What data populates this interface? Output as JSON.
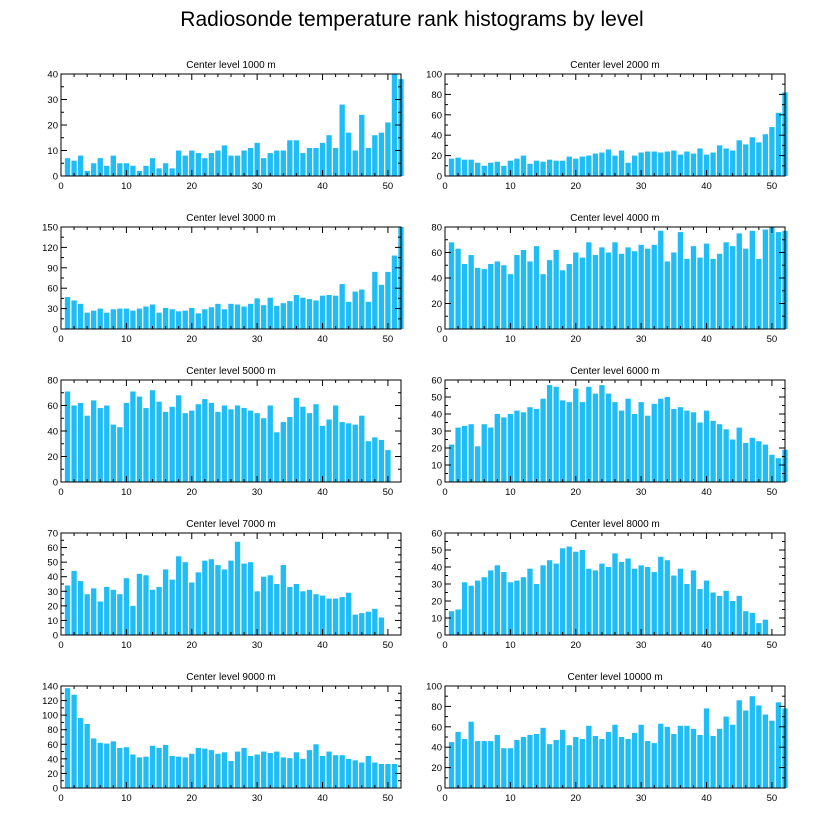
{
  "page_title": "Radiosonde temperature rank histograms by level",
  "bar_color": "#1fbcf5",
  "chart_data": [
    {
      "type": "bar",
      "title": "Center level 1000 m",
      "xlim": [
        0,
        52
      ],
      "ylim": [
        0,
        40
      ],
      "xticks": [
        0,
        10,
        20,
        30,
        40,
        50
      ],
      "yticks": [
        0,
        10,
        20,
        30,
        40
      ],
      "values": [
        7,
        6,
        8,
        2,
        5,
        7,
        4,
        8,
        5,
        5,
        4,
        2,
        4,
        7,
        3,
        5,
        3,
        10,
        8,
        10,
        9,
        7,
        9,
        10,
        12,
        8,
        8,
        10,
        11,
        13,
        7,
        9,
        10,
        10,
        14,
        14,
        9,
        11,
        11,
        13,
        16,
        11,
        28,
        17,
        10,
        24,
        11,
        16,
        17,
        21,
        40,
        38
      ]
    },
    {
      "type": "bar",
      "title": "Center level 2000 m",
      "xlim": [
        0,
        52
      ],
      "ylim": [
        0,
        100
      ],
      "xticks": [
        0,
        10,
        20,
        30,
        40,
        50
      ],
      "yticks": [
        0,
        20,
        40,
        60,
        80,
        100
      ],
      "values": [
        17,
        18,
        16,
        16,
        13,
        10,
        13,
        14,
        10,
        15,
        17,
        20,
        12,
        15,
        14,
        16,
        15,
        15,
        19,
        17,
        19,
        20,
        22,
        23,
        26,
        20,
        25,
        13,
        20,
        23,
        24,
        24,
        23,
        24,
        25,
        21,
        24,
        22,
        27,
        21,
        23,
        30,
        27,
        25,
        35,
        31,
        38,
        33,
        41,
        48,
        62,
        82
      ]
    },
    {
      "type": "bar",
      "title": "Center level 3000 m",
      "xlim": [
        0,
        52
      ],
      "ylim": [
        0,
        150
      ],
      "xticks": [
        0,
        10,
        20,
        30,
        40,
        50
      ],
      "yticks": [
        0,
        30,
        60,
        90,
        120,
        150
      ],
      "values": [
        47,
        42,
        37,
        24,
        27,
        30,
        24,
        29,
        30,
        30,
        27,
        30,
        33,
        36,
        24,
        31,
        29,
        26,
        27,
        31,
        23,
        29,
        32,
        37,
        29,
        37,
        36,
        33,
        37,
        45,
        35,
        46,
        34,
        38,
        41,
        50,
        46,
        44,
        42,
        49,
        50,
        49,
        66,
        40,
        55,
        58,
        40,
        84,
        65,
        84,
        108,
        150
      ]
    },
    {
      "type": "bar",
      "title": "Center level 4000 m",
      "xlim": [
        0,
        52
      ],
      "ylim": [
        0,
        80
      ],
      "xticks": [
        0,
        10,
        20,
        30,
        40,
        50
      ],
      "yticks": [
        0,
        20,
        40,
        60,
        80
      ],
      "values": [
        68,
        63,
        51,
        58,
        48,
        47,
        51,
        53,
        50,
        43,
        58,
        62,
        53,
        65,
        43,
        54,
        62,
        46,
        51,
        60,
        56,
        68,
        58,
        64,
        60,
        68,
        59,
        64,
        61,
        66,
        63,
        66,
        77,
        53,
        60,
        76,
        55,
        65,
        56,
        67,
        55,
        59,
        68,
        65,
        75,
        63,
        77,
        55,
        78,
        80,
        76,
        77
      ]
    },
    {
      "type": "bar",
      "title": "Center level 5000 m",
      "xlim": [
        0,
        52
      ],
      "ylim": [
        0,
        80
      ],
      "xticks": [
        0,
        10,
        20,
        30,
        40,
        50
      ],
      "yticks": [
        0,
        20,
        40,
        60,
        80
      ],
      "values": [
        71,
        60,
        62,
        52,
        64,
        58,
        60,
        45,
        43,
        62,
        71,
        67,
        58,
        72,
        63,
        55,
        59,
        68,
        54,
        56,
        61,
        65,
        62,
        55,
        60,
        57,
        60,
        58,
        56,
        54,
        50,
        60,
        39,
        47,
        51,
        66,
        59,
        54,
        61,
        44,
        49,
        60,
        47,
        46,
        45,
        52,
        32,
        35,
        33,
        25
      ]
    },
    {
      "type": "bar",
      "title": "Center level 6000 m",
      "xlim": [
        0,
        52
      ],
      "ylim": [
        0,
        60
      ],
      "xticks": [
        0,
        10,
        20,
        30,
        40,
        50
      ],
      "yticks": [
        0,
        10,
        20,
        30,
        40,
        50,
        60
      ],
      "values": [
        22,
        32,
        33,
        34,
        21,
        34,
        32,
        40,
        38,
        40,
        42,
        41,
        44,
        43,
        49,
        57,
        56,
        48,
        47,
        55,
        47,
        56,
        52,
        57,
        52,
        47,
        42,
        49,
        40,
        47,
        39,
        46,
        49,
        50,
        43,
        44,
        42,
        41,
        35,
        42,
        36,
        34,
        31,
        25,
        32,
        23,
        26,
        24,
        22,
        16,
        14,
        19
      ]
    },
    {
      "type": "bar",
      "title": "Center level 7000 m",
      "xlim": [
        0,
        52
      ],
      "ylim": [
        0,
        70
      ],
      "xticks": [
        0,
        10,
        20,
        30,
        40,
        50
      ],
      "yticks": [
        0,
        10,
        20,
        30,
        40,
        50,
        60,
        70
      ],
      "values": [
        34,
        44,
        37,
        28,
        32,
        23,
        33,
        31,
        28,
        39,
        20,
        42,
        41,
        31,
        33,
        45,
        38,
        54,
        50,
        36,
        43,
        51,
        52,
        48,
        45,
        51,
        64,
        49,
        50,
        30,
        40,
        41,
        35,
        48,
        33,
        35,
        30,
        31,
        28,
        27,
        25,
        25,
        26,
        29,
        14,
        15,
        16,
        18,
        12
      ]
    },
    {
      "type": "bar",
      "title": "Center level 8000 m",
      "xlim": [
        0,
        52
      ],
      "ylim": [
        0,
        60
      ],
      "xticks": [
        0,
        10,
        20,
        30,
        40,
        50
      ],
      "yticks": [
        0,
        10,
        20,
        30,
        40,
        50,
        60
      ],
      "values": [
        14,
        15,
        31,
        29,
        32,
        34,
        38,
        41,
        37,
        31,
        32,
        34,
        39,
        30,
        41,
        44,
        42,
        51,
        52,
        49,
        50,
        39,
        38,
        42,
        40,
        48,
        43,
        45,
        39,
        41,
        40,
        37,
        46,
        44,
        35,
        39,
        30,
        38,
        27,
        32,
        25,
        23,
        26,
        20,
        23,
        14,
        13,
        7,
        9
      ]
    },
    {
      "type": "bar",
      "title": "Center level 9000 m",
      "xlim": [
        0,
        52
      ],
      "ylim": [
        0,
        140
      ],
      "xticks": [
        0,
        10,
        20,
        30,
        40,
        50
      ],
      "yticks": [
        0,
        20,
        40,
        60,
        80,
        100,
        120,
        140
      ],
      "values": [
        137,
        128,
        96,
        88,
        68,
        62,
        61,
        64,
        55,
        56,
        46,
        42,
        43,
        58,
        55,
        59,
        44,
        43,
        42,
        47,
        55,
        54,
        52,
        47,
        49,
        37,
        50,
        55,
        44,
        46,
        50,
        48,
        50,
        42,
        41,
        49,
        40,
        52,
        60,
        44,
        50,
        45,
        45,
        40,
        38,
        35,
        44,
        35,
        33,
        33,
        33
      ]
    },
    {
      "type": "bar",
      "title": "Center level 10000 m",
      "xlim": [
        0,
        52
      ],
      "ylim": [
        0,
        100
      ],
      "xticks": [
        0,
        10,
        20,
        30,
        40,
        50
      ],
      "yticks": [
        0,
        20,
        40,
        60,
        80,
        100
      ],
      "values": [
        45,
        55,
        48,
        65,
        46,
        46,
        46,
        52,
        39,
        39,
        47,
        50,
        52,
        53,
        59,
        43,
        47,
        57,
        42,
        50,
        48,
        61,
        51,
        48,
        55,
        62,
        50,
        48,
        54,
        62,
        46,
        44,
        63,
        60,
        53,
        61,
        61,
        58,
        52,
        78,
        51,
        58,
        70,
        62,
        86,
        76,
        90,
        81,
        72,
        66,
        84,
        78
      ]
    }
  ]
}
